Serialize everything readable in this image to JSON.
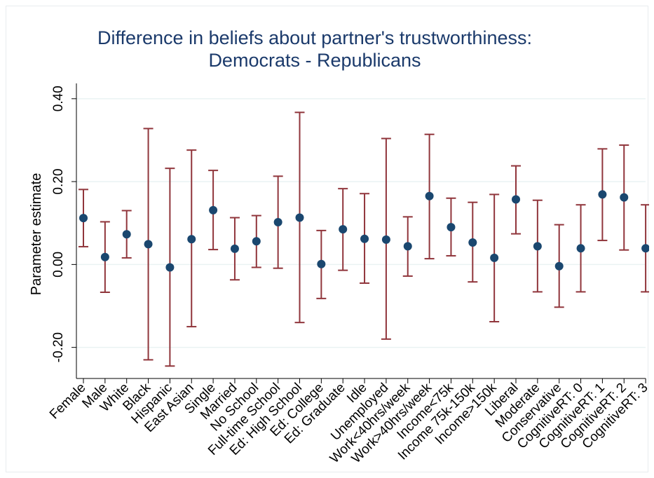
{
  "chart_data": {
    "type": "scatter",
    "title": "Difference in beliefs about partner's trustworthiness:",
    "subtitle": "Democrats - Republicans",
    "xlabel": "",
    "ylabel": "Parameter estimate",
    "ylim": [
      -0.275,
      0.42
    ],
    "yticks": [
      -0.2,
      0.0,
      0.2,
      0.4
    ],
    "ytick_labels": [
      "-0.20",
      "0.00",
      "0.20",
      "0.40"
    ],
    "grid": true,
    "legend": "none",
    "colors": {
      "point": "#1a476f",
      "errorbar": "#90353b",
      "grid": "#eaf2f3",
      "title": "#1b3a6b"
    },
    "categories": [
      "Female",
      "Male",
      "White",
      "Black",
      "Hispanic",
      "East Asian",
      "Single",
      "Married",
      "No School",
      "Full-time School",
      "Ed: High School",
      "Ed: College",
      "Ed: Graduate",
      "Idle",
      "Unemployed",
      "Work<40hrs/week",
      "Work>40hrs/week",
      "Income<75k",
      "Income 75k-150k",
      "Income>150k",
      "Liberal",
      "Moderate",
      "Conservative",
      "CognitiveRT: 0",
      "CognitiveRT: 1",
      "CognitiveRT: 2",
      "CognitiveRT: 3"
    ],
    "values": [
      0.112,
      0.018,
      0.073,
      0.049,
      -0.007,
      0.061,
      0.131,
      0.038,
      0.056,
      0.102,
      0.113,
      0.001,
      0.085,
      0.062,
      0.06,
      0.044,
      0.165,
      0.09,
      0.053,
      0.016,
      0.157,
      0.044,
      -0.004,
      0.039,
      0.169,
      0.162,
      0.039
    ],
    "ci_lower": [
      0.043,
      -0.067,
      0.016,
      -0.23,
      -0.245,
      -0.15,
      0.036,
      -0.037,
      -0.007,
      -0.009,
      -0.14,
      -0.082,
      -0.014,
      -0.045,
      -0.18,
      -0.028,
      0.014,
      0.021,
      -0.042,
      -0.138,
      0.074,
      -0.066,
      -0.103,
      -0.066,
      0.058,
      0.035,
      -0.066
    ],
    "ci_upper": [
      0.181,
      0.103,
      0.13,
      0.328,
      0.232,
      0.276,
      0.227,
      0.113,
      0.118,
      0.213,
      0.367,
      0.082,
      0.183,
      0.171,
      0.304,
      0.115,
      0.314,
      0.16,
      0.15,
      0.169,
      0.238,
      0.155,
      0.096,
      0.144,
      0.279,
      0.288,
      0.144
    ]
  }
}
